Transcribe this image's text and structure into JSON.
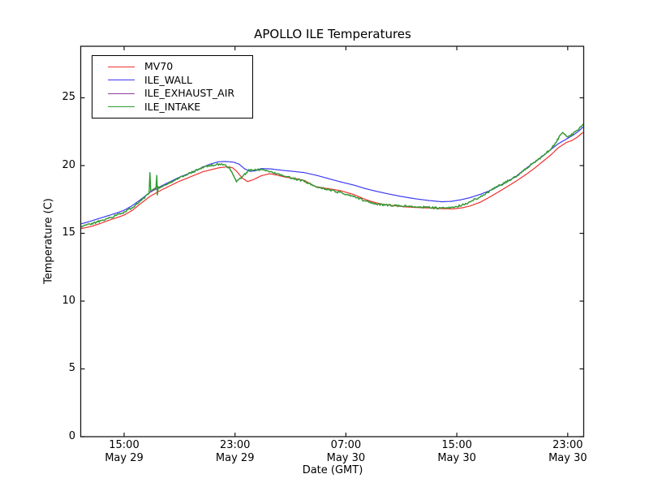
{
  "chart_data": {
    "type": "line",
    "title": "APOLLO ILE Temperatures",
    "xlabel": "Date (GMT)",
    "ylabel": "Temperature (C)",
    "grid": false,
    "legend_position": "upper-left",
    "x_unit": "hours from May 29 00:00 GMT",
    "xlim": [
      11.87,
      48.15
    ],
    "ylim": [
      0,
      28.8
    ],
    "yticks": [
      0,
      5,
      10,
      15,
      20,
      25
    ],
    "xticks": [
      {
        "t": 15,
        "time": "15:00",
        "date": "May 29"
      },
      {
        "t": 23,
        "time": "23:00",
        "date": "May 29"
      },
      {
        "t": 31,
        "time": "07:00",
        "date": "May 30"
      },
      {
        "t": 39,
        "time": "15:00",
        "date": "May 30"
      },
      {
        "t": 47,
        "time": "23:00",
        "date": "May 30"
      }
    ],
    "series": [
      {
        "name": "MV70",
        "color": "#f03030",
        "width": 1.2,
        "noise": 0,
        "points": [
          [
            11.9,
            15.35
          ],
          [
            12.6,
            15.5
          ],
          [
            13.2,
            15.7
          ],
          [
            14.0,
            16.0
          ],
          [
            14.6,
            16.2
          ],
          [
            15.0,
            16.35
          ],
          [
            15.6,
            16.7
          ],
          [
            16.2,
            17.2
          ],
          [
            16.9,
            17.75
          ],
          [
            17.7,
            18.2
          ],
          [
            18.3,
            18.5
          ],
          [
            18.9,
            18.8
          ],
          [
            19.5,
            19.05
          ],
          [
            20.1,
            19.3
          ],
          [
            20.7,
            19.55
          ],
          [
            21.3,
            19.7
          ],
          [
            21.9,
            19.85
          ],
          [
            22.4,
            19.9
          ],
          [
            22.8,
            19.85
          ],
          [
            23.1,
            19.6
          ],
          [
            23.5,
            19.1
          ],
          [
            23.9,
            18.82
          ],
          [
            24.3,
            18.95
          ],
          [
            24.9,
            19.25
          ],
          [
            25.5,
            19.4
          ],
          [
            26.0,
            19.3
          ],
          [
            26.6,
            19.15
          ],
          [
            27.3,
            19.05
          ],
          [
            28.0,
            18.9
          ],
          [
            28.8,
            18.45
          ],
          [
            29.7,
            18.3
          ],
          [
            30.6,
            18.15
          ],
          [
            31.6,
            17.85
          ],
          [
            32.4,
            17.5
          ],
          [
            33.0,
            17.3
          ],
          [
            33.6,
            17.15
          ],
          [
            34.4,
            17.05
          ],
          [
            35.3,
            16.95
          ],
          [
            36.2,
            16.9
          ],
          [
            37.0,
            16.87
          ],
          [
            38.0,
            16.82
          ],
          [
            38.7,
            16.8
          ],
          [
            39.3,
            16.87
          ],
          [
            39.9,
            17.0
          ],
          [
            40.7,
            17.3
          ],
          [
            41.5,
            17.75
          ],
          [
            42.4,
            18.3
          ],
          [
            43.2,
            18.8
          ],
          [
            44.0,
            19.35
          ],
          [
            44.6,
            19.8
          ],
          [
            45.2,
            20.3
          ],
          [
            45.8,
            20.8
          ],
          [
            46.3,
            21.3
          ],
          [
            46.9,
            21.7
          ],
          [
            47.3,
            21.85
          ],
          [
            47.7,
            22.1
          ],
          [
            48.1,
            22.45
          ]
        ]
      },
      {
        "name": "ILE_WALL",
        "color": "#3b3bf0",
        "width": 1.2,
        "noise": 0,
        "points": [
          [
            11.9,
            15.7
          ],
          [
            12.6,
            15.9
          ],
          [
            13.2,
            16.1
          ],
          [
            14.0,
            16.35
          ],
          [
            14.6,
            16.55
          ],
          [
            15.0,
            16.7
          ],
          [
            15.6,
            17.05
          ],
          [
            16.2,
            17.5
          ],
          [
            16.9,
            18.05
          ],
          [
            17.7,
            18.5
          ],
          [
            18.3,
            18.8
          ],
          [
            18.9,
            19.1
          ],
          [
            19.5,
            19.35
          ],
          [
            20.1,
            19.6
          ],
          [
            20.7,
            19.9
          ],
          [
            21.2,
            20.1
          ],
          [
            21.8,
            20.28
          ],
          [
            22.3,
            20.3
          ],
          [
            22.9,
            20.25
          ],
          [
            23.3,
            20.1
          ],
          [
            23.7,
            19.75
          ],
          [
            24.1,
            19.57
          ],
          [
            24.5,
            19.62
          ],
          [
            24.9,
            19.78
          ],
          [
            25.6,
            19.75
          ],
          [
            26.4,
            19.65
          ],
          [
            27.2,
            19.57
          ],
          [
            28.0,
            19.48
          ],
          [
            28.8,
            19.3
          ],
          [
            29.7,
            19.05
          ],
          [
            30.6,
            18.8
          ],
          [
            31.6,
            18.55
          ],
          [
            32.4,
            18.3
          ],
          [
            33.2,
            18.1
          ],
          [
            34.1,
            17.9
          ],
          [
            35.0,
            17.72
          ],
          [
            36.0,
            17.55
          ],
          [
            37.0,
            17.42
          ],
          [
            37.9,
            17.33
          ],
          [
            38.6,
            17.36
          ],
          [
            39.3,
            17.48
          ],
          [
            39.9,
            17.62
          ],
          [
            40.7,
            17.88
          ],
          [
            41.5,
            18.2
          ],
          [
            42.4,
            18.7
          ],
          [
            43.2,
            19.15
          ],
          [
            44.0,
            19.8
          ],
          [
            44.6,
            20.25
          ],
          [
            45.2,
            20.7
          ],
          [
            45.8,
            21.2
          ],
          [
            46.3,
            21.6
          ],
          [
            46.9,
            21.95
          ],
          [
            47.4,
            22.25
          ],
          [
            47.8,
            22.55
          ],
          [
            48.1,
            22.85
          ]
        ]
      },
      {
        "name": "ILE_EXHAUST_AIR",
        "color": "#8c3f9e",
        "width": 1.1,
        "noise": 0.07,
        "points": [
          [
            11.9,
            15.5
          ],
          [
            12.6,
            15.68
          ],
          [
            13.2,
            15.88
          ],
          [
            14.0,
            16.15
          ],
          [
            14.6,
            16.4
          ],
          [
            15.0,
            16.55
          ],
          [
            15.6,
            16.9
          ],
          [
            16.2,
            17.4
          ],
          [
            16.8,
            17.95
          ],
          [
            17.1,
            18.15
          ],
          [
            17.46,
            18.35
          ],
          [
            17.8,
            18.5
          ],
          [
            18.3,
            18.75
          ],
          [
            18.9,
            19.05
          ],
          [
            19.5,
            19.35
          ],
          [
            20.1,
            19.6
          ],
          [
            20.7,
            19.85
          ],
          [
            21.2,
            20.0
          ],
          [
            21.8,
            20.1
          ],
          [
            22.2,
            20.05
          ],
          [
            22.6,
            19.85
          ],
          [
            23.1,
            18.85
          ],
          [
            23.5,
            19.15
          ],
          [
            24.0,
            19.65
          ],
          [
            24.6,
            19.7
          ],
          [
            25.0,
            19.65
          ],
          [
            25.4,
            19.6
          ],
          [
            26.0,
            19.4
          ],
          [
            26.8,
            19.15
          ],
          [
            27.6,
            18.95
          ],
          [
            28.0,
            18.85
          ],
          [
            28.8,
            18.45
          ],
          [
            29.7,
            18.25
          ],
          [
            30.6,
            18.0
          ],
          [
            31.6,
            17.7
          ],
          [
            32.4,
            17.4
          ],
          [
            33.0,
            17.2
          ],
          [
            33.6,
            17.1
          ],
          [
            34.4,
            17.05
          ],
          [
            35.3,
            17.0
          ],
          [
            36.2,
            16.95
          ],
          [
            37.0,
            16.9
          ],
          [
            38.0,
            16.85
          ],
          [
            38.7,
            16.9
          ],
          [
            39.3,
            17.05
          ],
          [
            39.9,
            17.3
          ],
          [
            40.7,
            17.7
          ],
          [
            41.5,
            18.2
          ],
          [
            42.4,
            18.7
          ],
          [
            43.2,
            19.15
          ],
          [
            44.0,
            19.8
          ],
          [
            44.6,
            20.25
          ],
          [
            45.2,
            20.7
          ],
          [
            45.8,
            21.25
          ],
          [
            46.2,
            21.8
          ],
          [
            46.5,
            22.3
          ],
          [
            46.7,
            22.42
          ],
          [
            46.9,
            22.15
          ],
          [
            47.1,
            22.2
          ],
          [
            47.4,
            22.35
          ],
          [
            47.8,
            22.7
          ],
          [
            48.1,
            23.05
          ]
        ]
      },
      {
        "name": "ILE_INTAKE",
        "color": "#2e9b2e",
        "width": 1.4,
        "noise": 0.07,
        "points": [
          [
            11.9,
            15.5
          ],
          [
            12.6,
            15.68
          ],
          [
            13.2,
            15.88
          ],
          [
            14.0,
            16.15
          ],
          [
            14.6,
            16.4
          ],
          [
            15.0,
            16.55
          ],
          [
            15.6,
            16.9
          ],
          [
            16.2,
            17.4
          ],
          [
            16.8,
            17.95
          ],
          [
            16.86,
            19.45
          ],
          [
            16.92,
            18.1
          ],
          [
            17.1,
            18.2
          ],
          [
            17.3,
            18.35
          ],
          [
            17.36,
            19.35
          ],
          [
            17.4,
            17.8
          ],
          [
            17.46,
            18.35
          ],
          [
            17.8,
            18.5
          ],
          [
            18.3,
            18.75
          ],
          [
            18.9,
            19.05
          ],
          [
            19.5,
            19.35
          ],
          [
            20.1,
            19.6
          ],
          [
            20.7,
            19.85
          ],
          [
            21.2,
            20.0
          ],
          [
            21.8,
            20.1
          ],
          [
            22.2,
            20.05
          ],
          [
            22.6,
            19.85
          ],
          [
            23.1,
            18.85
          ],
          [
            23.5,
            19.15
          ],
          [
            24.0,
            19.65
          ],
          [
            24.6,
            19.7
          ],
          [
            25.0,
            19.65
          ],
          [
            25.4,
            19.6
          ],
          [
            26.0,
            19.4
          ],
          [
            26.8,
            19.15
          ],
          [
            27.6,
            18.95
          ],
          [
            28.0,
            18.85
          ],
          [
            28.8,
            18.45
          ],
          [
            29.7,
            18.25
          ],
          [
            30.6,
            18.0
          ],
          [
            31.6,
            17.7
          ],
          [
            32.4,
            17.4
          ],
          [
            33.0,
            17.2
          ],
          [
            33.6,
            17.1
          ],
          [
            34.4,
            17.05
          ],
          [
            35.3,
            17.0
          ],
          [
            36.2,
            16.95
          ],
          [
            37.0,
            16.9
          ],
          [
            38.0,
            16.85
          ],
          [
            38.7,
            16.9
          ],
          [
            39.3,
            17.05
          ],
          [
            39.9,
            17.3
          ],
          [
            40.7,
            17.7
          ],
          [
            41.5,
            18.2
          ],
          [
            42.4,
            18.7
          ],
          [
            43.2,
            19.15
          ],
          [
            44.0,
            19.8
          ],
          [
            44.6,
            20.25
          ],
          [
            45.2,
            20.7
          ],
          [
            45.8,
            21.25
          ],
          [
            46.2,
            21.8
          ],
          [
            46.5,
            22.3
          ],
          [
            46.7,
            22.42
          ],
          [
            46.9,
            22.15
          ],
          [
            47.1,
            22.2
          ],
          [
            47.4,
            22.35
          ],
          [
            47.8,
            22.7
          ],
          [
            48.1,
            23.05
          ]
        ]
      }
    ]
  }
}
